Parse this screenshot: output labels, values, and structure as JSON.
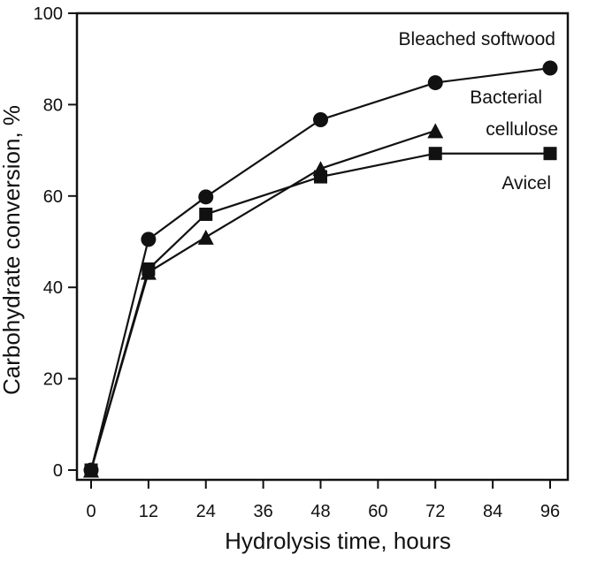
{
  "chart_data": {
    "type": "line",
    "title": "",
    "xlabel": "Hydrolysis time, hours",
    "ylabel": "Carbohydrate conversion, %",
    "xlim": [
      0,
      98
    ],
    "ylim": [
      0,
      100
    ],
    "xticks": [
      0,
      12,
      24,
      36,
      48,
      60,
      72,
      84,
      96
    ],
    "yticks": [
      0,
      20,
      40,
      60,
      80,
      100
    ],
    "x": [
      0,
      12,
      24,
      48,
      72,
      96
    ],
    "grid": false,
    "legend": "inline-labels",
    "colors": {
      "line": "#111111",
      "marker": "#111111",
      "axis": "#111111"
    },
    "series": [
      {
        "name": "Bleached softwood",
        "marker": "circle",
        "x": [
          0,
          12,
          24,
          48,
          72,
          96
        ],
        "values": [
          0,
          50.5,
          59.8,
          76.7,
          84.8,
          88
        ]
      },
      {
        "name": "Bacterial cellulose",
        "label_lines": [
          "Bacterial",
          "cellulose"
        ],
        "marker": "triangle",
        "x": [
          0,
          12,
          24,
          48,
          72
        ],
        "values": [
          0,
          43.3,
          51,
          66,
          74.3
        ]
      },
      {
        "name": "Avicel",
        "marker": "square",
        "x": [
          0,
          12,
          24,
          48,
          72,
          96
        ],
        "values": [
          0,
          44,
          56,
          64.2,
          69.3,
          69.3
        ]
      }
    ]
  }
}
